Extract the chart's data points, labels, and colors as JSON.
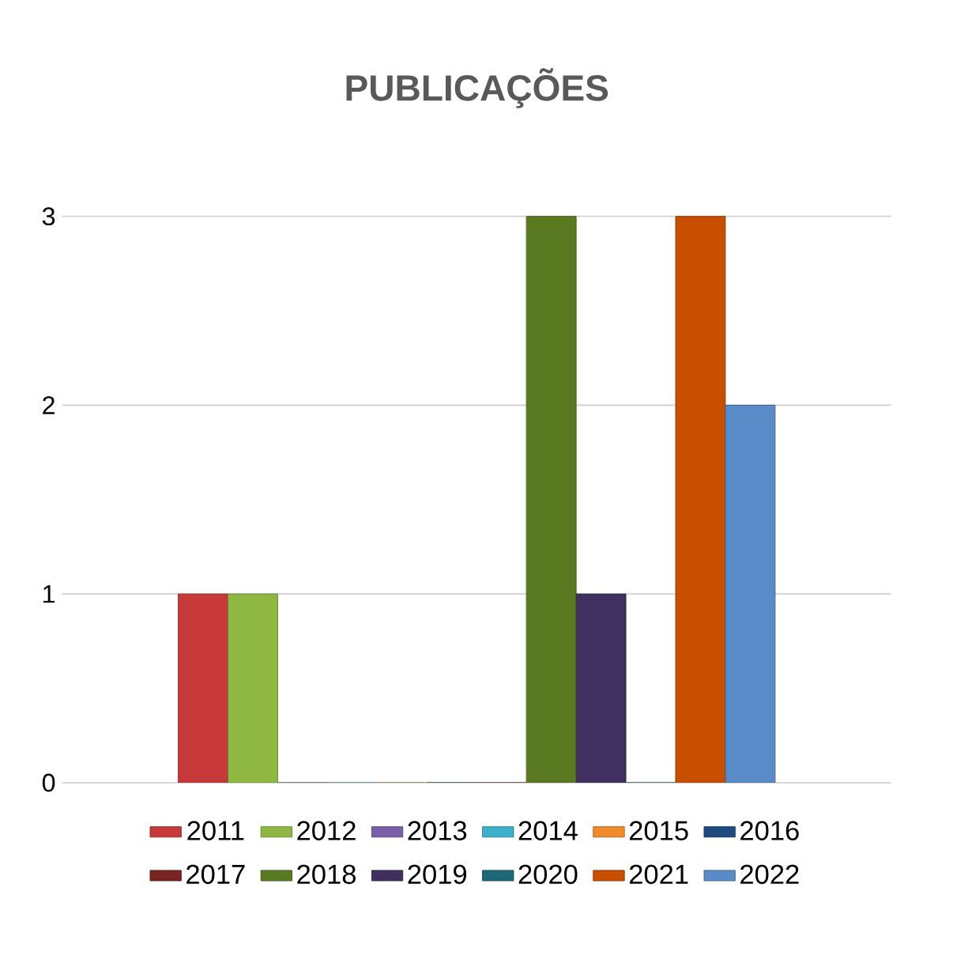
{
  "chart_data": {
    "type": "bar",
    "title": "PUBLICAÇÕES",
    "categories": [
      null
    ],
    "series": [
      {
        "name": "2011",
        "color": "#c83a3a",
        "values": [
          1
        ]
      },
      {
        "name": "2012",
        "color": "#8fb843",
        "values": [
          1
        ]
      },
      {
        "name": "2013",
        "color": "#7a5fa8",
        "values": [
          0
        ]
      },
      {
        "name": "2014",
        "color": "#3fb0cc",
        "values": [
          0
        ]
      },
      {
        "name": "2015",
        "color": "#f08a2a",
        "values": [
          0
        ]
      },
      {
        "name": "2016",
        "color": "#1f4a80",
        "values": [
          0
        ]
      },
      {
        "name": "2017",
        "color": "#7a2424",
        "values": [
          0
        ]
      },
      {
        "name": "2018",
        "color": "#5a7a22",
        "values": [
          3
        ]
      },
      {
        "name": "2019",
        "color": "#40305f",
        "values": [
          1
        ]
      },
      {
        "name": "2020",
        "color": "#1f6878",
        "values": [
          0
        ]
      },
      {
        "name": "2021",
        "color": "#c84f00",
        "values": [
          3
        ]
      },
      {
        "name": "2022",
        "color": "#5a8ac8",
        "values": [
          2
        ]
      }
    ],
    "ylim": [
      0,
      3
    ],
    "yticks": [
      0,
      1,
      2,
      3
    ],
    "grid": "y",
    "legend": "bottom"
  }
}
